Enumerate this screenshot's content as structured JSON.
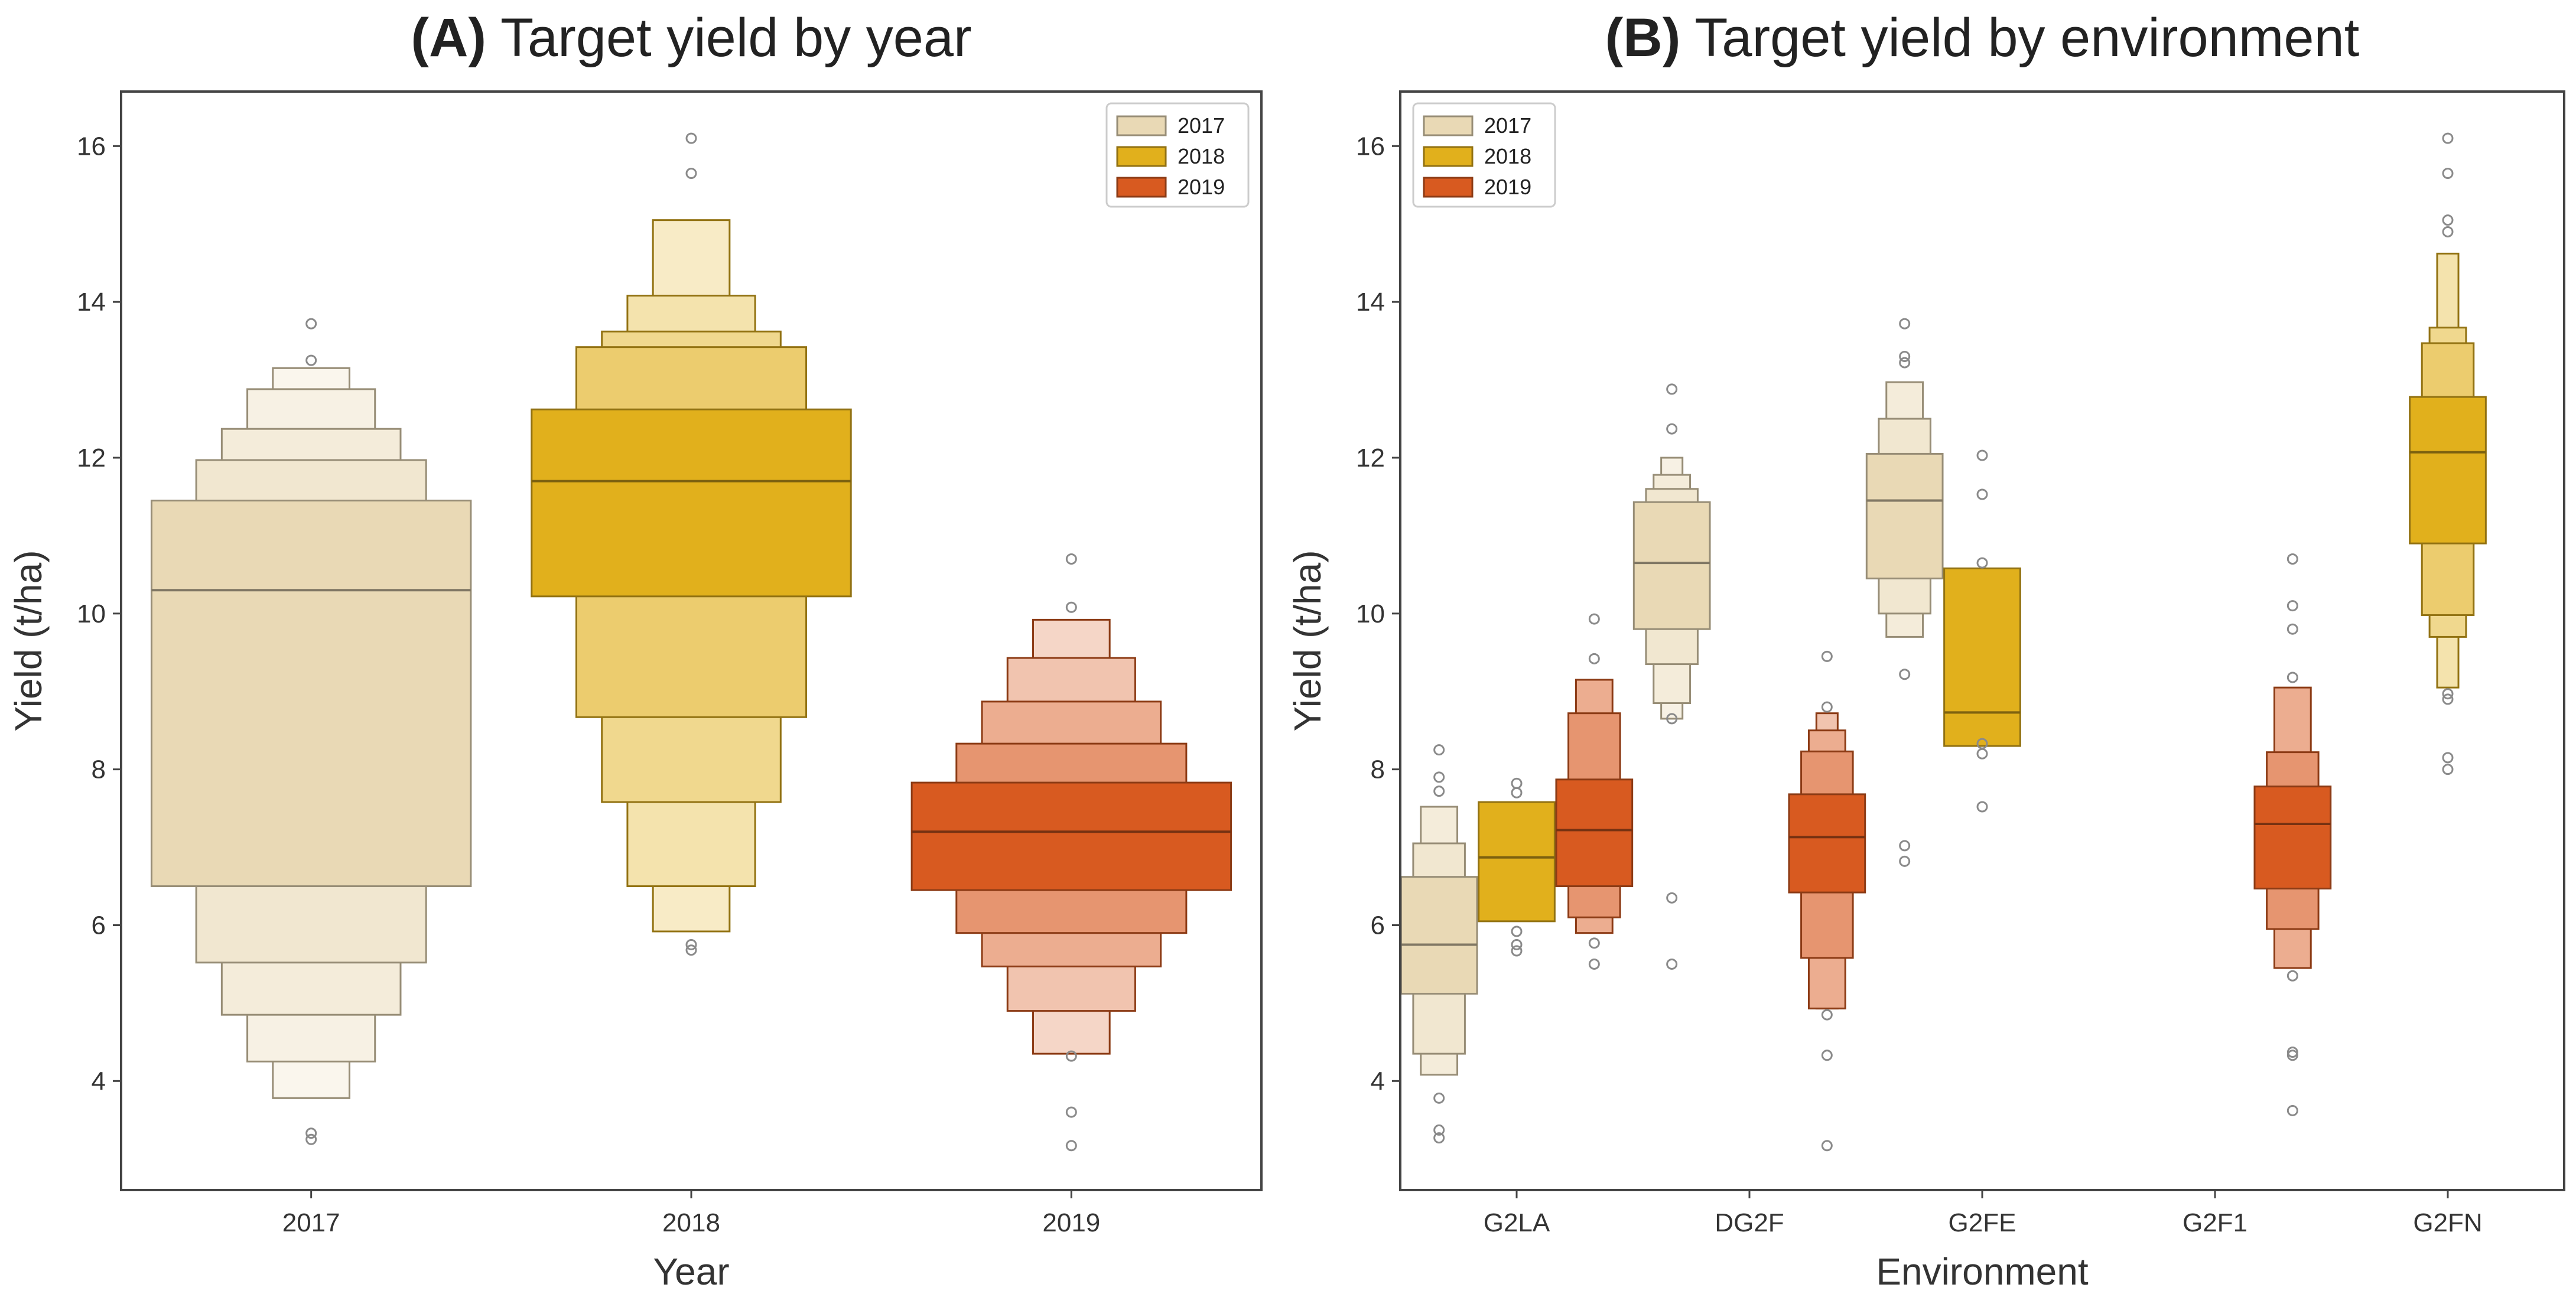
{
  "chart_data": [
    {
      "type": "boxen",
      "panel_label": "(A)",
      "title": "Target yield by year",
      "xlabel": "Year",
      "ylabel": "Yield (t/ha)",
      "categories": [
        "2017",
        "2018",
        "2019"
      ],
      "ylim": [
        2.6,
        16.7
      ],
      "yticks": [
        "4",
        "6",
        "8",
        "10",
        "12",
        "14",
        "16"
      ],
      "grid": false,
      "legend_position": "top-right",
      "legend": [
        {
          "name": "2017",
          "color": "#e9d9b5"
        },
        {
          "name": "2018",
          "color": "#e1b01c"
        },
        {
          "name": "2019",
          "color": "#d85a20"
        }
      ],
      "series": [
        {
          "name": "2017",
          "category": "2017",
          "color": "#e9d9b5",
          "median": 10.3,
          "levels": [
            [
              6.5,
              11.45
            ],
            [
              5.52,
              11.97
            ],
            [
              4.85,
              12.37
            ],
            [
              4.25,
              12.88
            ],
            [
              3.78,
              13.15
            ]
          ],
          "outliers": [
            3.25,
            3.33,
            13.25,
            13.72
          ]
        },
        {
          "name": "2018",
          "category": "2018",
          "color": "#e1b01c",
          "median": 11.7,
          "levels": [
            [
              10.22,
              12.62
            ],
            [
              8.67,
              13.42
            ],
            [
              7.58,
              13.62
            ],
            [
              6.5,
              14.08
            ],
            [
              5.92,
              15.05
            ]
          ],
          "outliers": [
            5.68,
            5.75,
            15.65,
            16.1
          ]
        },
        {
          "name": "2019",
          "category": "2019",
          "color": "#d85a20",
          "median": 7.2,
          "levels": [
            [
              6.45,
              7.83
            ],
            [
              5.9,
              8.33
            ],
            [
              5.47,
              8.87
            ],
            [
              4.9,
              9.43
            ],
            [
              4.35,
              9.92
            ]
          ],
          "outliers": [
            3.17,
            3.6,
            4.32,
            10.08,
            10.7
          ]
        }
      ]
    },
    {
      "type": "boxen",
      "panel_label": "(B)",
      "title": "Target yield by environment",
      "xlabel": "Environment",
      "ylabel": "Yield (t/ha)",
      "categories": [
        "G2LA",
        "DG2F",
        "G2FE",
        "G2F1",
        "G2FN"
      ],
      "ylim": [
        2.6,
        16.7
      ],
      "yticks": [
        "4",
        "6",
        "8",
        "10",
        "12",
        "14",
        "16"
      ],
      "grid": false,
      "legend_position": "top-left",
      "legend": [
        {
          "name": "2017",
          "color": "#e9d9b5"
        },
        {
          "name": "2018",
          "color": "#e1b01c"
        },
        {
          "name": "2019",
          "color": "#d85a20"
        }
      ],
      "series": [
        {
          "name": "2017",
          "category": "G2LA",
          "color": "#e9d9b5",
          "median": 5.75,
          "levels": [
            [
              5.12,
              6.62
            ],
            [
              4.35,
              7.05
            ],
            [
              4.08,
              7.52
            ]
          ],
          "outliers": [
            3.27,
            3.37,
            3.78,
            7.72,
            7.9,
            8.25
          ]
        },
        {
          "name": "2018",
          "category": "G2LA",
          "color": "#e1b01c",
          "median": 6.87,
          "levels": [
            [
              6.05,
              7.58
            ]
          ],
          "outliers": [
            5.67,
            5.75,
            5.92,
            7.7,
            7.82
          ]
        },
        {
          "name": "2019",
          "category": "G2LA",
          "color": "#d85a20",
          "median": 7.22,
          "levels": [
            [
              6.5,
              7.87
            ],
            [
              6.1,
              8.72
            ],
            [
              5.9,
              9.15
            ]
          ],
          "outliers": [
            5.5,
            5.77,
            9.42,
            9.93
          ]
        },
        {
          "name": "2017",
          "category": "DG2F",
          "color": "#e9d9b5",
          "median": 10.65,
          "levels": [
            [
              9.8,
              11.43
            ],
            [
              9.35,
              11.6
            ],
            [
              8.85,
              11.78
            ],
            [
              8.65,
              12.0
            ]
          ],
          "outliers": [
            5.5,
            6.35,
            8.65,
            12.37,
            12.88
          ]
        },
        {
          "name": "2019",
          "category": "DG2F",
          "color": "#d85a20",
          "median": 7.13,
          "levels": [
            [
              6.42,
              7.68
            ],
            [
              5.58,
              8.23
            ],
            [
              4.93,
              8.5
            ],
            [
              4.93,
              8.72
            ]
          ],
          "outliers": [
            3.17,
            4.33,
            4.85,
            8.8,
            9.45
          ]
        },
        {
          "name": "2017",
          "category": "G2FE",
          "color": "#e9d9b5",
          "median": 11.45,
          "levels": [
            [
              10.45,
              12.05
            ],
            [
              10.0,
              12.5
            ],
            [
              9.7,
              12.97
            ]
          ],
          "outliers": [
            6.82,
            7.02,
            9.22,
            13.22,
            13.3,
            13.72
          ]
        },
        {
          "name": "2018",
          "category": "G2FE",
          "color": "#e1b01c",
          "median": 8.73,
          "levels": [
            [
              8.3,
              10.58
            ]
          ],
          "outliers": [
            7.52,
            8.2,
            8.33,
            10.65,
            11.53,
            12.03
          ]
        },
        {
          "name": "2019",
          "category": "G2F1",
          "color": "#d85a20",
          "median": 7.3,
          "levels": [
            [
              6.47,
              7.78
            ],
            [
              5.95,
              8.22
            ],
            [
              5.45,
              9.05
            ]
          ],
          "outliers": [
            3.62,
            4.33,
            4.37,
            5.35,
            9.18,
            9.8,
            10.1,
            10.7
          ]
        },
        {
          "name": "2018",
          "category": "G2FN",
          "color": "#e1b01c",
          "median": 12.07,
          "levels": [
            [
              10.9,
              12.78
            ],
            [
              9.98,
              13.47
            ],
            [
              9.7,
              13.67
            ],
            [
              9.05,
              14.62
            ]
          ],
          "outliers": [
            8.0,
            8.15,
            8.9,
            8.97,
            14.9,
            15.05,
            15.65,
            16.1
          ]
        }
      ]
    }
  ]
}
